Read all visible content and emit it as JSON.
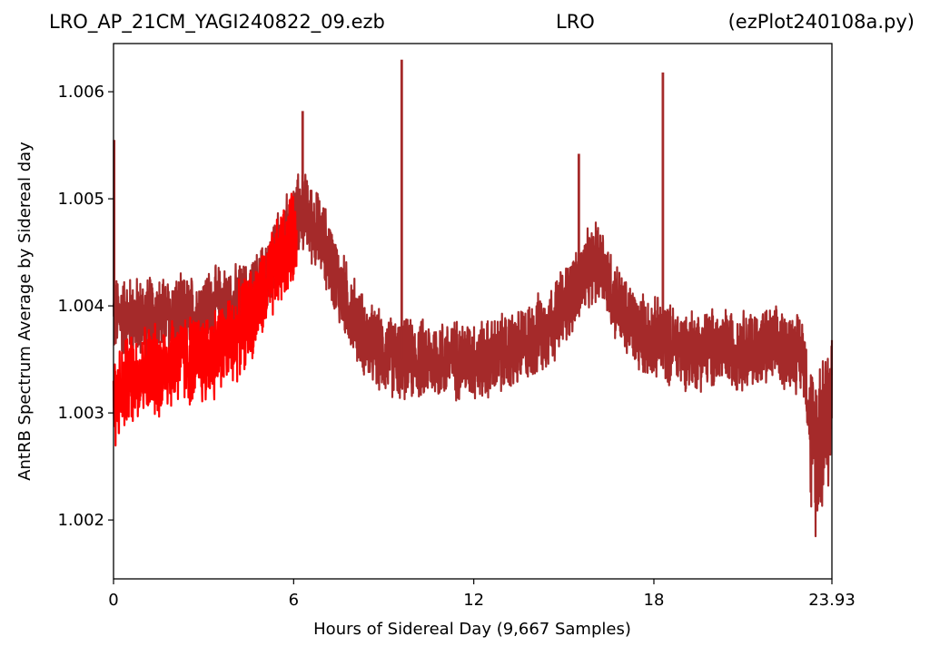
{
  "header": {
    "left": "LRO_AP_21CM_YAGI240822_09.ezb",
    "center": "LRO",
    "right": "(ezPlot240108a.py)"
  },
  "colors": {
    "series_main": "#a52a2a",
    "series_highlight": "#ff0000"
  },
  "chart_data": {
    "type": "line",
    "title": "",
    "xlabel": "Hours of Sidereal Day  (9,667 Samples)",
    "ylabel": "AntRB Spectrum Average by Sidereal day",
    "xlim": [
      0,
      23.93
    ],
    "ylim": [
      1.00145,
      1.00645
    ],
    "xticks": [
      0,
      6,
      12,
      18,
      23.93
    ],
    "xtick_labels": [
      "0",
      "6",
      "12",
      "18",
      "23.93"
    ],
    "yticks": [
      1.002,
      1.003,
      1.004,
      1.005,
      1.006
    ],
    "ytick_labels": [
      "1.002",
      "1.003",
      "1.004",
      "1.005",
      "1.006"
    ],
    "grid": false,
    "legend": "none",
    "series": [
      {
        "color": "#a52a2a",
        "x": [
          0,
          0.5,
          1,
          1.5,
          2,
          2.5,
          3,
          3.5,
          4,
          4.5,
          5,
          5.5,
          6,
          6.3,
          7,
          7.5,
          8,
          8.5,
          9,
          9.5,
          10,
          10.5,
          11,
          11.5,
          12,
          12.5,
          13,
          13.5,
          14,
          14.5,
          15,
          15.5,
          16,
          16.3,
          16.5,
          17,
          17.5,
          18,
          18.5,
          19,
          19.5,
          20,
          20.5,
          21,
          21.5,
          22,
          22.5,
          23,
          23.3,
          23.6,
          23.93
        ],
        "y": [
          1.0039,
          1.0039,
          1.0039,
          1.0039,
          1.0039,
          1.0039,
          1.00395,
          1.004,
          1.004,
          1.00405,
          1.0042,
          1.0045,
          1.0048,
          1.0049,
          1.0046,
          1.0042,
          1.0039,
          1.00365,
          1.00355,
          1.0035,
          1.0035,
          1.0035,
          1.0035,
          1.0035,
          1.0035,
          1.0035,
          1.00355,
          1.0036,
          1.0037,
          1.0038,
          1.004,
          1.0042,
          1.0044,
          1.0044,
          1.0042,
          1.0039,
          1.00375,
          1.0037,
          1.00365,
          1.0036,
          1.0036,
          1.0036,
          1.0036,
          1.0036,
          1.0036,
          1.0036,
          1.0036,
          1.00355,
          1.0026,
          1.0029,
          1.0031
        ]
      },
      {
        "color": "#ff0000",
        "x": [
          0,
          0.25,
          0.5,
          1,
          1.5,
          2,
          2.5,
          3,
          3.5,
          4,
          4.5,
          5,
          5.5,
          6.1
        ],
        "y": [
          1.0031,
          1.0032,
          1.0033,
          1.0034,
          1.0034,
          1.0035,
          1.0035,
          1.0035,
          1.0036,
          1.0037,
          1.0039,
          1.0041,
          1.0044,
          1.0047
        ]
      }
    ],
    "spikes": [
      {
        "x": 0.02,
        "y": 1.00555
      },
      {
        "x": 6.3,
        "y": 1.00582
      },
      {
        "x": 9.6,
        "y": 1.0063
      },
      {
        "x": 15.5,
        "y": 1.00542
      },
      {
        "x": 18.3,
        "y": 1.00618
      }
    ]
  }
}
